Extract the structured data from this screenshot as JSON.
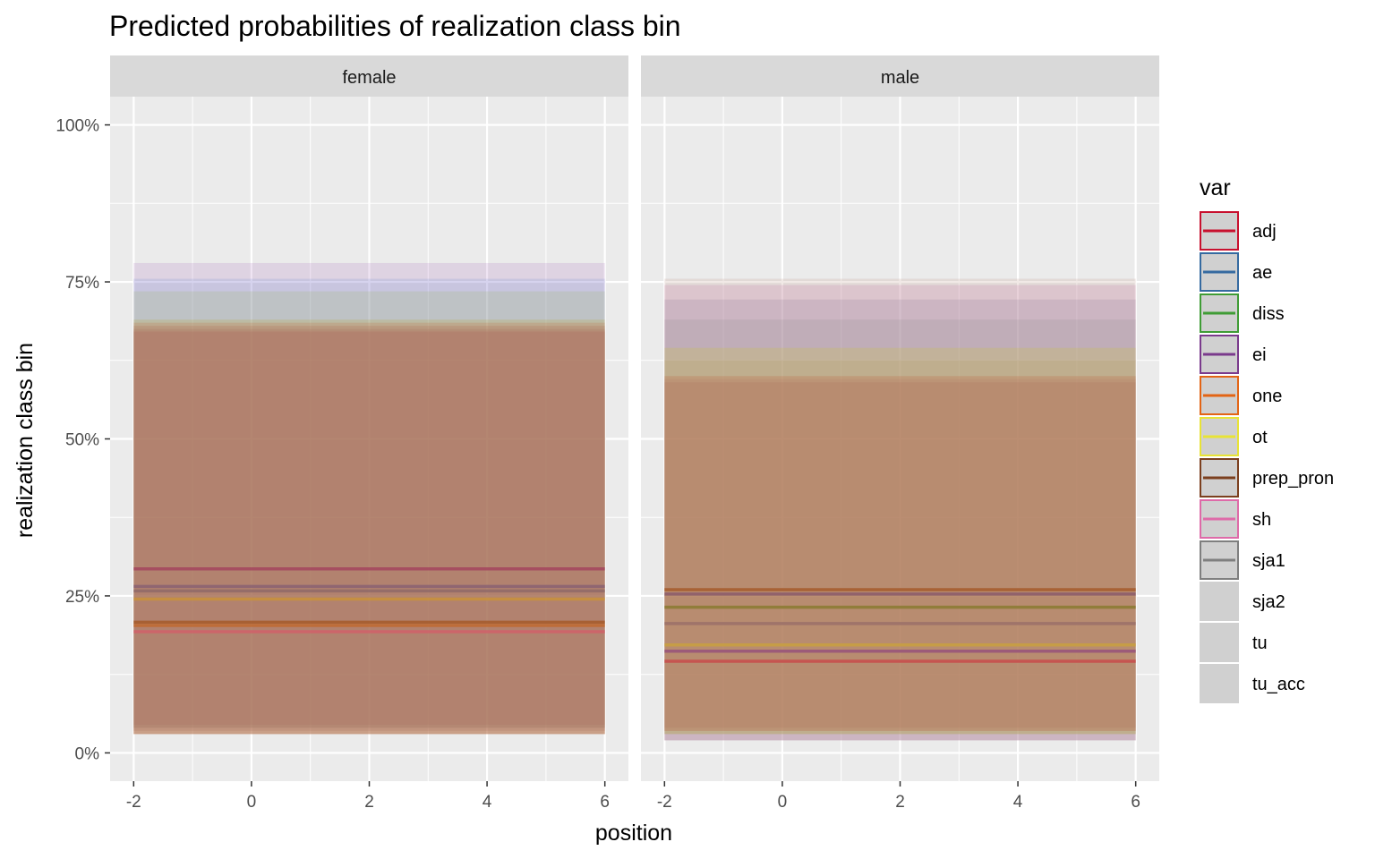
{
  "chart_data": {
    "type": "line",
    "title": "Predicted probabilities of realization class bin",
    "xlabel": "position",
    "ylabel": "realization class bin",
    "xlim": [
      -2.4,
      6.4
    ],
    "ylim": [
      -0.045,
      1.045
    ],
    "x_ticks": [
      -2,
      0,
      2,
      4,
      6
    ],
    "x_tick_labels": [
      "-2",
      "0",
      "2",
      "4",
      "6"
    ],
    "x_minor_ticks": [
      -1,
      1,
      3,
      5
    ],
    "y_ticks": [
      0,
      0.25,
      0.5,
      0.75,
      1.0
    ],
    "y_tick_labels": [
      "0%",
      "25%",
      "50%",
      "75%",
      "100%"
    ],
    "y_minor_ticks": [
      0.125,
      0.375,
      0.625,
      0.875
    ],
    "legend": {
      "title": "var",
      "position": "right",
      "entries": [
        {
          "label": "adj",
          "color": "#c8102e",
          "has_line": true
        },
        {
          "label": "ae",
          "color": "#356aa0",
          "has_line": true
        },
        {
          "label": "diss",
          "color": "#3f9c35",
          "has_line": true
        },
        {
          "label": "ei",
          "color": "#7a3a8c",
          "has_line": true
        },
        {
          "label": "one",
          "color": "#e36414",
          "has_line": true
        },
        {
          "label": "ot",
          "color": "#e8e336",
          "has_line": true
        },
        {
          "label": "prep_pron",
          "color": "#7b3f1e",
          "has_line": true
        },
        {
          "label": "sh",
          "color": "#de6aa8",
          "has_line": true
        },
        {
          "label": "sja1",
          "color": "#7f7f7f",
          "has_line": true
        },
        {
          "label": "sja2",
          "color": "#d0d0d0",
          "has_line": false
        },
        {
          "label": "tu",
          "color": "#d0d0d0",
          "has_line": false
        },
        {
          "label": "tu_acc",
          "color": "#d0d0d0",
          "has_line": false
        }
      ]
    },
    "x_range": [
      -2,
      6
    ],
    "panels": [
      {
        "strip": "female",
        "bands": [
          {
            "ymin": 0.04,
            "ymax": 0.78,
            "color": "#9b59b6",
            "opacity": 0.16
          },
          {
            "ymin": 0.04,
            "ymax": 0.755,
            "color": "#5a7fd6",
            "opacity": 0.16
          },
          {
            "ymin": 0.04,
            "ymax": 0.735,
            "color": "#9dbb68",
            "opacity": 0.22
          },
          {
            "ymin": 0.03,
            "ymax": 0.69,
            "color": "#b5a020",
            "opacity": 0.2
          },
          {
            "ymin": 0.03,
            "ymax": 0.685,
            "color": "#c46a40",
            "opacity": 0.22
          },
          {
            "ymin": 0.03,
            "ymax": 0.68,
            "color": "#b06a52",
            "opacity": 0.24
          },
          {
            "ymin": 0.035,
            "ymax": 0.675,
            "color": "#a87062",
            "opacity": 0.24
          },
          {
            "ymin": 0.03,
            "ymax": 0.672,
            "color": "#b4736a",
            "opacity": 0.24
          },
          {
            "ymin": 0.045,
            "ymax": 0.67,
            "color": "#a97060",
            "opacity": 0.2
          }
        ],
        "series": [
          {
            "name": "adj",
            "y": [
              0.293,
              0.293
            ],
            "color": "#a3455e"
          },
          {
            "name": "ae",
            "y": [
              0.265,
              0.265
            ],
            "color": "#8a6272"
          },
          {
            "name": "sja1",
            "y": [
              0.258,
              0.258
            ],
            "color": "#8f6a68"
          },
          {
            "name": "ot",
            "y": [
              0.245,
              0.245
            ],
            "color": "#c8923c"
          },
          {
            "name": "prep_pron",
            "y": [
              0.208,
              0.208
            ],
            "color": "#a55a2a"
          },
          {
            "name": "one",
            "y": [
              0.203,
              0.203
            ],
            "color": "#c06a30"
          },
          {
            "name": "sh",
            "y": [
              0.193,
              0.193
            ],
            "color": "#d0606a"
          }
        ]
      },
      {
        "strip": "male",
        "bands": [
          {
            "ymin": 0.02,
            "ymax": 0.755,
            "color": "#c8a69a",
            "opacity": 0.25
          },
          {
            "ymin": 0.02,
            "ymax": 0.745,
            "color": "#c77bae",
            "opacity": 0.22
          },
          {
            "ymin": 0.02,
            "ymax": 0.722,
            "color": "#8a7a96",
            "opacity": 0.2
          },
          {
            "ymin": 0.03,
            "ymax": 0.69,
            "color": "#7f7f7f",
            "opacity": 0.15
          },
          {
            "ymin": 0.03,
            "ymax": 0.645,
            "color": "#c9c230",
            "opacity": 0.22
          },
          {
            "ymin": 0.03,
            "ymax": 0.625,
            "color": "#b09a5a",
            "opacity": 0.18
          },
          {
            "ymin": 0.035,
            "ymax": 0.6,
            "color": "#c0623c",
            "opacity": 0.24
          },
          {
            "ymin": 0.035,
            "ymax": 0.595,
            "color": "#b5766a",
            "opacity": 0.2
          },
          {
            "ymin": 0.04,
            "ymax": 0.59,
            "color": "#a9705a",
            "opacity": 0.2
          }
        ],
        "series": [
          {
            "name": "prep_pron",
            "y": [
              0.26,
              0.26
            ],
            "color": "#a55a2a"
          },
          {
            "name": "ei",
            "y": [
              0.253,
              0.253
            ],
            "color": "#8a5a6a"
          },
          {
            "name": "diss",
            "y": [
              0.232,
              0.232
            ],
            "color": "#8a7a30"
          },
          {
            "name": "sja1",
            "y": [
              0.206,
              0.206
            ],
            "color": "#9a7068"
          },
          {
            "name": "ot",
            "y": [
              0.172,
              0.172
            ],
            "color": "#c8a040"
          },
          {
            "name": "ae",
            "y": [
              0.162,
              0.162
            ],
            "color": "#96527a"
          },
          {
            "name": "adj",
            "y": [
              0.146,
              0.146
            ],
            "color": "#c84a4a"
          }
        ]
      }
    ]
  }
}
